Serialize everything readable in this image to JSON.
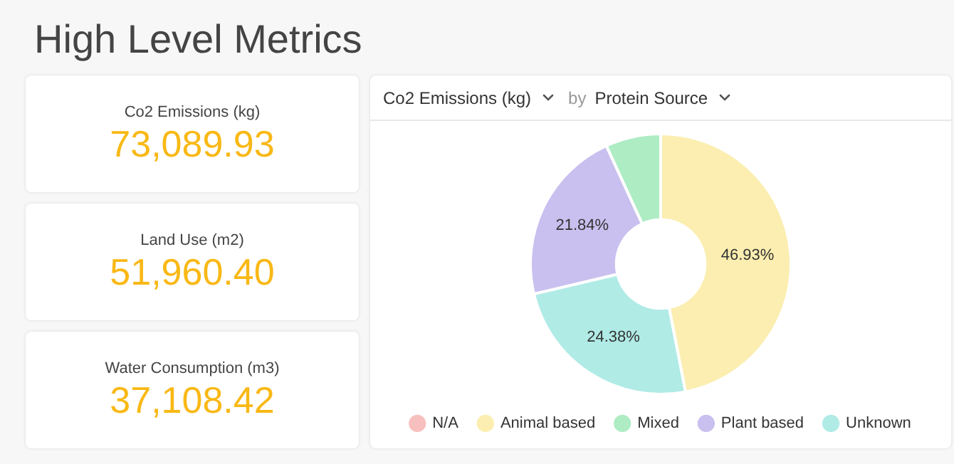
{
  "chart_data": [
    {
      "type": "other",
      "title": "High Level Metrics",
      "annotations": [
        "Co2 Emissions (kg)",
        "73,089.93",
        "Land Use (m2)",
        "51,960.40",
        "Water Consumption (m3)",
        "37,108.42"
      ]
    },
    {
      "type": "donut",
      "title": "Co2 Emissions (kg)",
      "annotations": [
        "by",
        "Protein Source"
      ],
      "categories": [
        "N/A",
        "Animal based",
        "Mixed",
        "Plant based",
        "Unknown"
      ],
      "values": [
        0,
        46.93,
        6.85,
        21.84,
        24.38
      ],
      "colors": [
        "#f7c0bf",
        "#fbeeb0",
        "#aeecc4",
        "#c9c0ef",
        "#b0ebe6"
      ],
      "value_labels": [
        null,
        "46.93%",
        null,
        "21.84%",
        "24.38%"
      ],
      "legend": "bottom"
    }
  ]
}
